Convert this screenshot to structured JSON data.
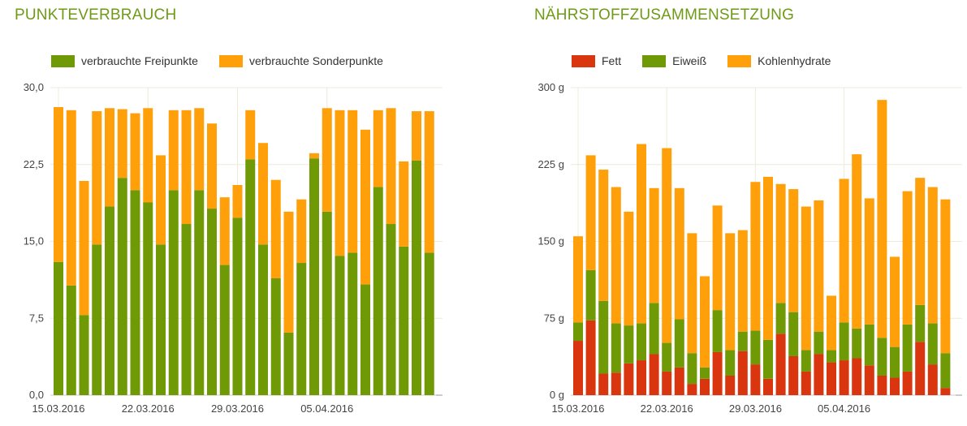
{
  "colors": {
    "title": "#6f9a17",
    "freipunkte": "#6f9a05",
    "sonderpunkte": "#ff9f0a",
    "fett": "#d9350f",
    "eiweiss": "#6f9a05",
    "kohlenhydrate": "#ff9f0a",
    "gridline": "#ececd8",
    "axis": "#cccccc"
  },
  "charts": [
    {
      "title": "PUNKTEVERBRAUCH",
      "chart_data": {
        "type": "bar",
        "stacked": true,
        "ylim": [
          0,
          30
        ],
        "ytick_values": [
          0,
          7.5,
          15,
          22.5,
          30
        ],
        "ytick_labels": [
          "0,0",
          "7,5",
          "15,0",
          "22,5",
          "30,0"
        ],
        "xtick_positions": [
          0,
          7,
          14,
          21
        ],
        "xtick_labels": [
          "15.03.2016",
          "22.03.2016",
          "29.03.2016",
          "05.04.2016"
        ],
        "grid": true,
        "legend_position": "top-left",
        "categories": [
          "15.03",
          "16.03",
          "17.03",
          "18.03",
          "19.03",
          "20.03",
          "21.03",
          "22.03",
          "23.03",
          "24.03",
          "25.03",
          "26.03",
          "27.03",
          "28.03",
          "29.03",
          "30.03",
          "31.03",
          "01.04",
          "02.04",
          "03.04",
          "04.04",
          "05.04",
          "06.04",
          "07.04",
          "08.04",
          "09.04",
          "10.04",
          "11.04",
          "12.04",
          "13.04",
          "14.04"
        ],
        "series": [
          {
            "name": "verbrauchte Freipunkte",
            "color_key": "freipunkte",
            "values": [
              13.0,
              10.7,
              7.8,
              14.7,
              18.4,
              21.2,
              20.0,
              18.8,
              14.7,
              20.0,
              16.7,
              20.0,
              18.2,
              12.7,
              17.3,
              23.0,
              14.7,
              11.4,
              6.1,
              12.9,
              23.1,
              17.9,
              13.6,
              13.9,
              10.8,
              20.3,
              16.7,
              14.5,
              22.9,
              13.9,
              0
            ]
          },
          {
            "name": "verbrauchte Sonderpunkte",
            "color_key": "sonderpunkte",
            "values": [
              15.1,
              17.1,
              13.1,
              13.0,
              9.6,
              6.7,
              7.5,
              9.2,
              8.7,
              7.8,
              11.1,
              8.0,
              8.3,
              6.6,
              3.2,
              4.8,
              9.9,
              9.6,
              11.8,
              6.2,
              0.5,
              10.1,
              14.2,
              13.9,
              15.1,
              7.5,
              11.3,
              8.3,
              4.8,
              13.8,
              0
            ]
          }
        ]
      }
    },
    {
      "title": "NÄHRSTOFFZUSAMMENSETZUNG",
      "chart_data": {
        "type": "bar",
        "stacked": true,
        "ylim": [
          0,
          300
        ],
        "unit": "g",
        "ytick_values": [
          0,
          75,
          150,
          225,
          300
        ],
        "ytick_labels": [
          "0 g",
          "75 g",
          "150 g",
          "225 g",
          "300 g"
        ],
        "xtick_positions": [
          0,
          7,
          14,
          21
        ],
        "xtick_labels": [
          "15.03.2016",
          "22.03.2016",
          "29.03.2016",
          "05.04.2016"
        ],
        "grid": true,
        "legend_position": "top-left",
        "categories": [
          "15.03",
          "16.03",
          "17.03",
          "18.03",
          "19.03",
          "20.03",
          "21.03",
          "22.03",
          "23.03",
          "24.03",
          "25.03",
          "26.03",
          "27.03",
          "28.03",
          "29.03",
          "30.03",
          "31.03",
          "01.04",
          "02.04",
          "03.04",
          "04.04",
          "05.04",
          "06.04",
          "07.04",
          "08.04",
          "09.04",
          "10.04",
          "11.04",
          "12.04",
          "13.04",
          "14.04"
        ],
        "series": [
          {
            "name": "Fett",
            "color_key": "fett",
            "values": [
              53,
              73,
              21,
              22,
              31,
              34,
              40,
              23,
              27,
              11,
              16,
              42,
              19,
              43,
              30,
              16,
              60,
              38,
              23,
              40,
              32,
              34,
              36,
              29,
              19,
              17,
              23,
              52,
              30,
              7,
              0
            ]
          },
          {
            "name": "Eiweiß",
            "color_key": "eiweiss",
            "values": [
              18,
              49,
              71,
              48,
              37,
              36,
              50,
              28,
              47,
              30,
              11,
              41,
              25,
              19,
              33,
              38,
              30,
              43,
              21,
              22,
              12,
              37,
              29,
              40,
              37,
              30,
              46,
              36,
              40,
              34,
              0
            ]
          },
          {
            "name": "Kohlenhydrate",
            "color_key": "kohlenhydrate",
            "values": [
              84,
              112,
              128,
              133,
              111,
              175,
              112,
              190,
              128,
              117,
              89,
              102,
              114,
              99,
              145,
              159,
              116,
              120,
              140,
              128,
              53,
              140,
              170,
              123,
              232,
              88,
              130,
              124,
              133,
              150,
              0
            ]
          }
        ]
      }
    }
  ]
}
